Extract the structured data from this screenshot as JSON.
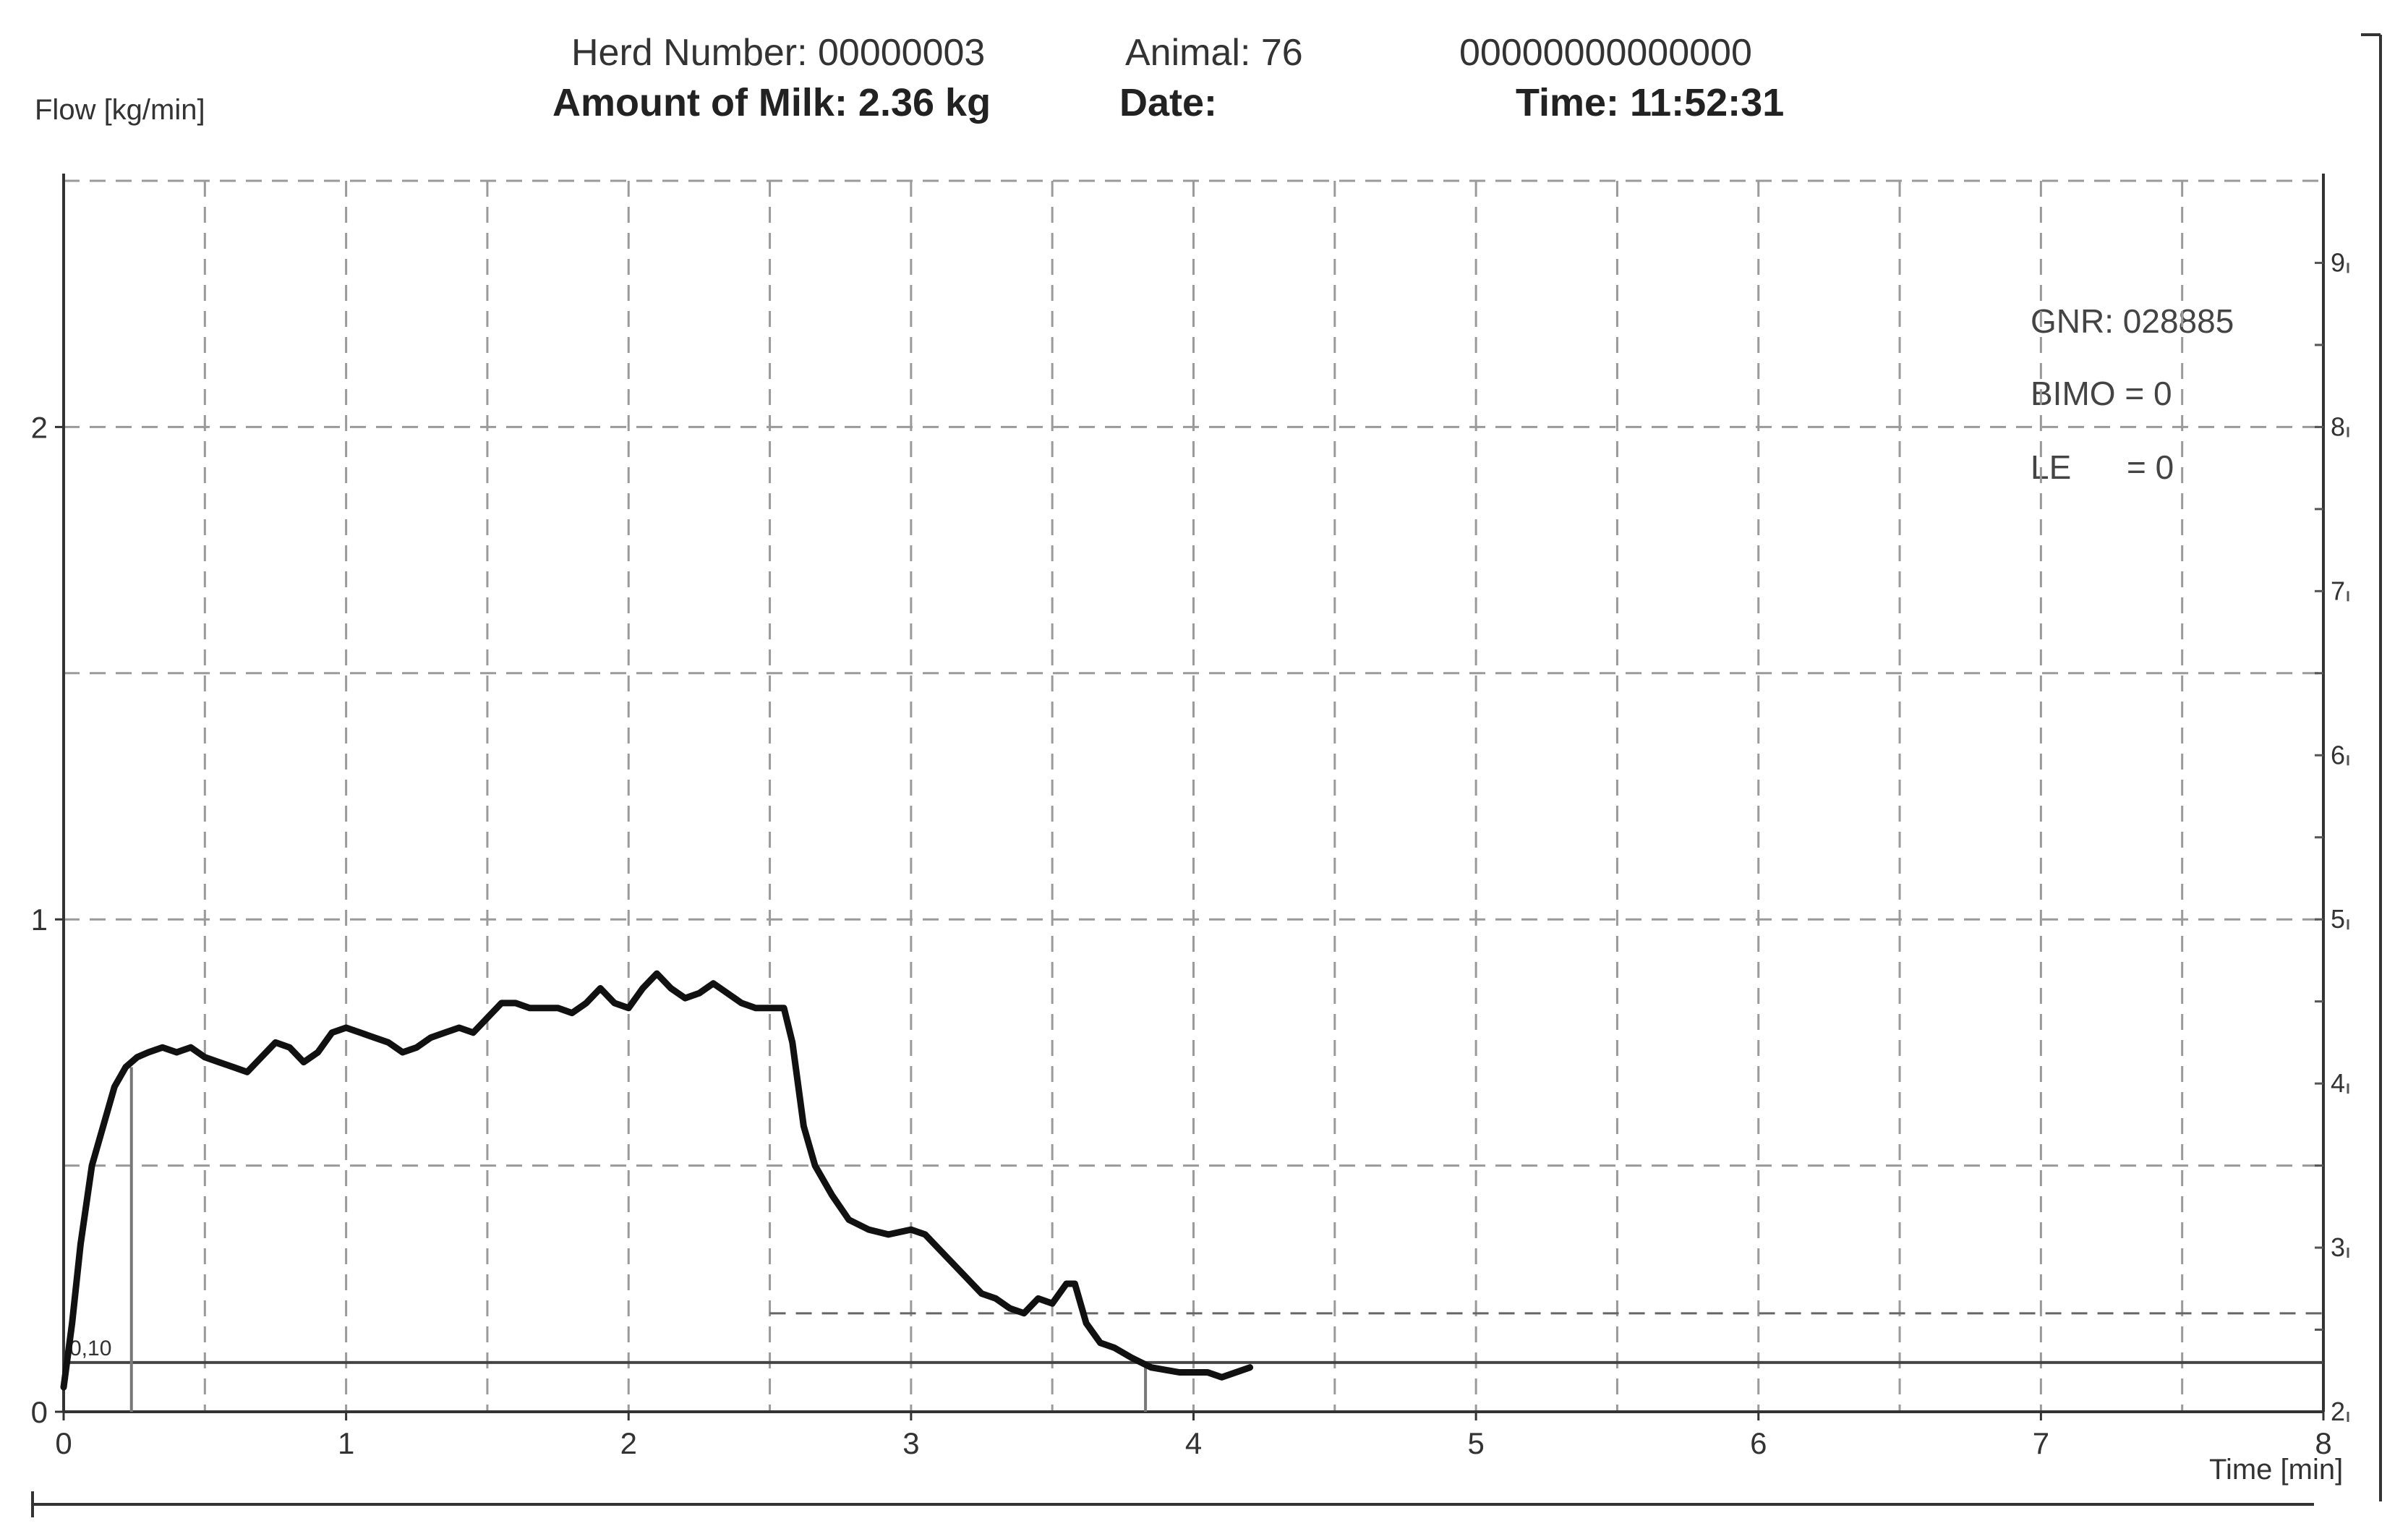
{
  "header": {
    "herd_number": "Herd Number: 00000003",
    "animal": "Animal: 76",
    "id_code": "00000000000000",
    "amount_of_milk": "Amount of Milk: 2.36 kg",
    "date": "Date:",
    "time": "Time: 11:52:31"
  },
  "info_box": {
    "gnr": "GNR: 028885",
    "bimo": "BIMO = 0",
    "le": "LE      = 0"
  },
  "chart_data": {
    "type": "line",
    "title": "",
    "xlabel": "Time [min]",
    "ylabel": "Flow [kg/min]",
    "xlim": [
      0,
      8
    ],
    "ylim": [
      0,
      2.5
    ],
    "y2lim": [
      2,
      9.5
    ],
    "grid": true,
    "x_ticks": [
      0,
      1,
      2,
      3,
      4,
      5,
      6,
      7,
      8
    ],
    "x_tick_labels": [
      "0",
      "1",
      "2",
      "3",
      "4",
      "5",
      "6",
      "7",
      "8"
    ],
    "y_ticks": [
      0,
      1,
      2
    ],
    "y_tick_labels": [
      "0",
      "1",
      "2"
    ],
    "y2_ticks": [
      2,
      3,
      4,
      5,
      6,
      7,
      8,
      9
    ],
    "y2_tick_labels": [
      "2",
      "3",
      "4",
      "5",
      "6",
      "7",
      "8",
      "9"
    ],
    "threshold": {
      "value": 0.1,
      "label": "0,10"
    },
    "markers_x": [
      0.24,
      3.83
    ],
    "series": [
      {
        "x": [
          0,
          0.03,
          0.06,
          0.1,
          0.14,
          0.18,
          0.22,
          0.26,
          0.3,
          0.35,
          0.4,
          0.45,
          0.5,
          0.55,
          0.6,
          0.65,
          0.7,
          0.75,
          0.8,
          0.85,
          0.9,
          0.95,
          1.0,
          1.05,
          1.1,
          1.15,
          1.2,
          1.25,
          1.3,
          1.35,
          1.4,
          1.45,
          1.5,
          1.55,
          1.6,
          1.65,
          1.7,
          1.75,
          1.8,
          1.85,
          1.9,
          1.95,
          2.0,
          2.05,
          2.1,
          2.15,
          2.2,
          2.25,
          2.3,
          2.35,
          2.4,
          2.45,
          2.5,
          2.55,
          2.58,
          2.62,
          2.66,
          2.72,
          2.78,
          2.85,
          2.92,
          3.0,
          3.05,
          3.1,
          3.15,
          3.2,
          3.25,
          3.3,
          3.35,
          3.4,
          3.45,
          3.5,
          3.55,
          3.58,
          3.62,
          3.67,
          3.72,
          3.78,
          3.85,
          3.95,
          4.05,
          4.1,
          4.15,
          4.2
        ],
        "values": [
          0.05,
          0.18,
          0.34,
          0.5,
          0.58,
          0.66,
          0.7,
          0.72,
          0.73,
          0.74,
          0.73,
          0.74,
          0.72,
          0.71,
          0.7,
          0.69,
          0.72,
          0.75,
          0.74,
          0.71,
          0.73,
          0.77,
          0.78,
          0.77,
          0.76,
          0.75,
          0.73,
          0.74,
          0.76,
          0.77,
          0.78,
          0.77,
          0.8,
          0.83,
          0.83,
          0.82,
          0.82,
          0.82,
          0.81,
          0.83,
          0.86,
          0.83,
          0.82,
          0.86,
          0.89,
          0.86,
          0.84,
          0.85,
          0.87,
          0.85,
          0.83,
          0.82,
          0.82,
          0.82,
          0.75,
          0.58,
          0.5,
          0.44,
          0.39,
          0.37,
          0.36,
          0.37,
          0.36,
          0.33,
          0.3,
          0.27,
          0.24,
          0.23,
          0.21,
          0.2,
          0.23,
          0.22,
          0.26,
          0.26,
          0.18,
          0.14,
          0.13,
          0.11,
          0.09,
          0.08,
          0.08,
          0.07,
          0.08,
          0.09
        ]
      }
    ]
  }
}
